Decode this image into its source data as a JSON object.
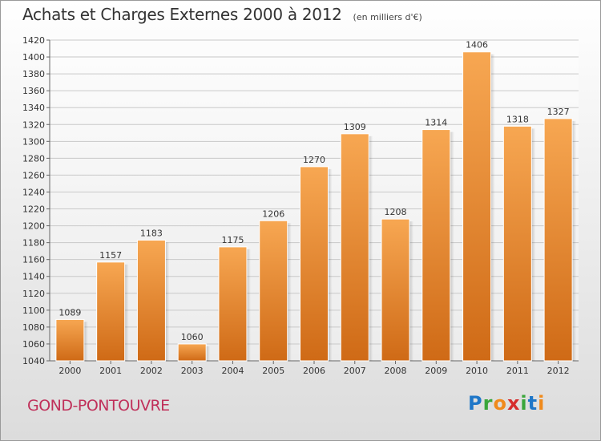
{
  "title": "Achats et Charges Externes 2000 à 2012",
  "unit": "(en milliers d'€)",
  "place": "GOND-PONTOUVRE",
  "logo": {
    "text": "Proxiti",
    "colors": [
      "#1f77c8",
      "#3aa63a",
      "#f08a1c",
      "#d62d2d",
      "#3aa63a",
      "#1f77c8",
      "#f08a1c"
    ]
  },
  "colors": {
    "bar_top": "#f7a752",
    "bar_bottom": "#cf6a16",
    "grid": "#c9c9c9",
    "axis": "#666666"
  },
  "chart_data": {
    "type": "bar",
    "title": "Achats et Charges Externes 2000 à 2012",
    "categories": [
      "2000",
      "2001",
      "2002",
      "2003",
      "2004",
      "2005",
      "2006",
      "2007",
      "2008",
      "2009",
      "2010",
      "2011",
      "2012"
    ],
    "values": [
      1089,
      1157,
      1183,
      1060,
      1175,
      1206,
      1270,
      1309,
      1208,
      1314,
      1406,
      1318,
      1327
    ],
    "ylim": [
      1040,
      1420
    ],
    "ytick_step": 20,
    "grid": true,
    "xlabel": "",
    "ylabel": ""
  }
}
